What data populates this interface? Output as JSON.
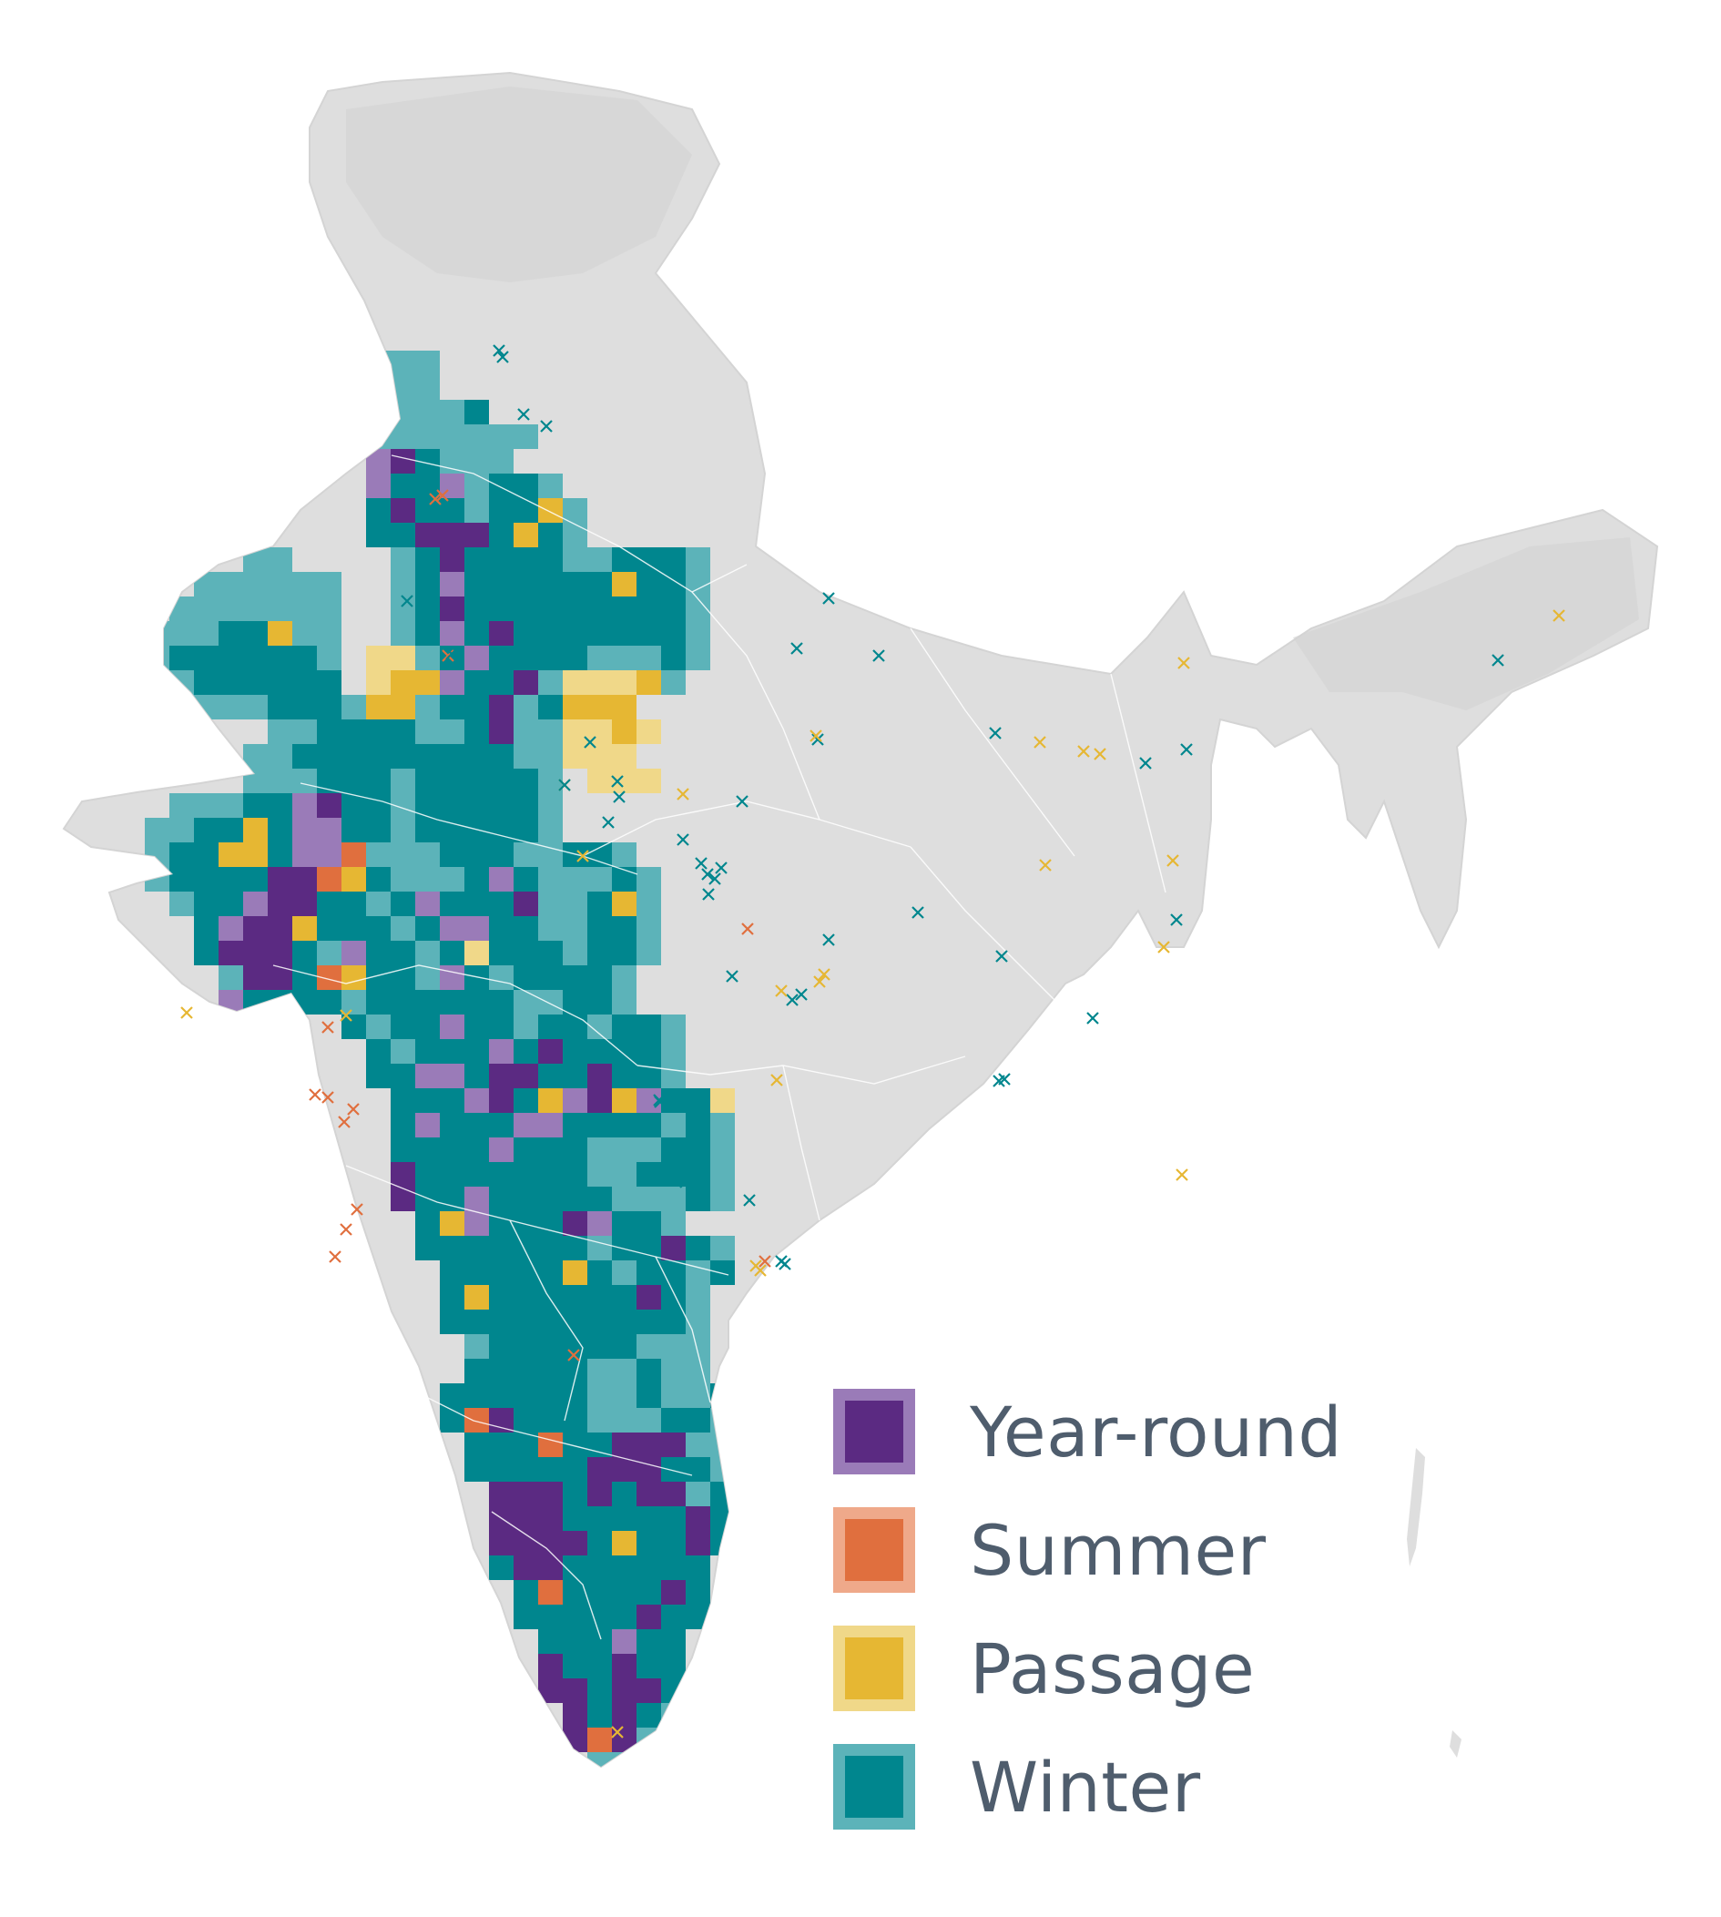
{
  "map": {
    "region": "India",
    "colors": {
      "land": "#dedede",
      "land_shade": "#d2d2d2",
      "boundary": "#ffffff",
      "year_round": "#5b2a82",
      "year_round_light": "#9a7bb8",
      "summer": "#e06f3e",
      "summer_light": "#efa98a",
      "passage": "#e6b733",
      "passage_light": "#f0d889",
      "winter": "#00868e",
      "winter_light": "#5cb3b9"
    }
  },
  "legend": {
    "items": [
      {
        "key": "year_round",
        "label": "Year-round",
        "fill": "#5b2a82",
        "border": "#9a7bb8"
      },
      {
        "key": "summer",
        "label": "Summer",
        "fill": "#e06f3e",
        "border": "#efa98a"
      },
      {
        "key": "passage",
        "label": "Passage",
        "fill": "#e6b733",
        "border": "#f0d889"
      },
      {
        "key": "winter",
        "label": "Winter",
        "fill": "#00868e",
        "border": "#5cb3b9"
      }
    ]
  }
}
